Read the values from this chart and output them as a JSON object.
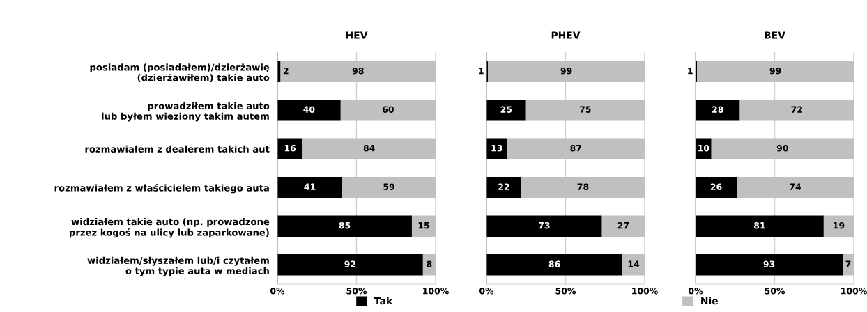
{
  "chart_data": [
    {
      "type": "bar",
      "orientation": "horizontal",
      "stacked": true,
      "title": "HEV",
      "categories": [
        "posiadam (posiadałem)/dzierżawię\n(dzierżawiłem) takie auto",
        "prowadziłem takie auto\nlub byłem wieziony takim autem",
        "rozmawiałem z dealerem takich aut",
        "rozmawiałem z właścicielem takiego auta",
        "widziałem takie auto (np. prowadzone\nprzez kogoś na ulicy lub zaparkowane)",
        "widziałem/słyszałem lub/i czytałem\no tym typie auta w mediach"
      ],
      "series": [
        {
          "name": "Tak",
          "color": "#000000",
          "values": [
            2,
            40,
            16,
            41,
            85,
            92
          ]
        },
        {
          "name": "Nie",
          "color": "#c0c0c0",
          "values": [
            98,
            60,
            84,
            59,
            15,
            8
          ]
        }
      ],
      "xlim": [
        0,
        100
      ],
      "xticks": [
        {
          "value": 0,
          "label": "0%"
        },
        {
          "value": 50,
          "label": "50%"
        },
        {
          "value": 100,
          "label": "100%"
        }
      ],
      "grid": "x",
      "data_labels": true,
      "legend": "bottom"
    },
    {
      "type": "bar",
      "orientation": "horizontal",
      "stacked": true,
      "title": "PHEV",
      "categories": [
        null,
        null,
        null,
        null,
        null,
        null
      ],
      "series": [
        {
          "color": "#000000",
          "values": [
            1,
            25,
            13,
            22,
            73,
            86
          ]
        },
        {
          "color": "#c0c0c0",
          "values": [
            99,
            75,
            87,
            78,
            27,
            14
          ]
        }
      ],
      "xlim": [
        0,
        100
      ],
      "xticks": [
        {
          "value": 0,
          "label": "0%"
        },
        {
          "value": 50,
          "label": "50%"
        },
        {
          "value": 100,
          "label": "100%"
        }
      ],
      "grid": "x",
      "data_labels": true
    },
    {
      "type": "bar",
      "orientation": "horizontal",
      "stacked": true,
      "title": "BEV",
      "categories": [
        null,
        null,
        null,
        null,
        null,
        null
      ],
      "series": [
        {
          "color": "#000000",
          "values": [
            1,
            28,
            10,
            26,
            81,
            93
          ]
        },
        {
          "color": "#c0c0c0",
          "values": [
            99,
            72,
            90,
            74,
            19,
            7
          ]
        }
      ],
      "xlim": [
        0,
        100
      ],
      "xticks": [
        {
          "value": 0,
          "label": "0%"
        },
        {
          "value": 50,
          "label": "50%"
        },
        {
          "value": 100,
          "label": "100%"
        }
      ],
      "grid": "x",
      "data_labels": true
    }
  ]
}
